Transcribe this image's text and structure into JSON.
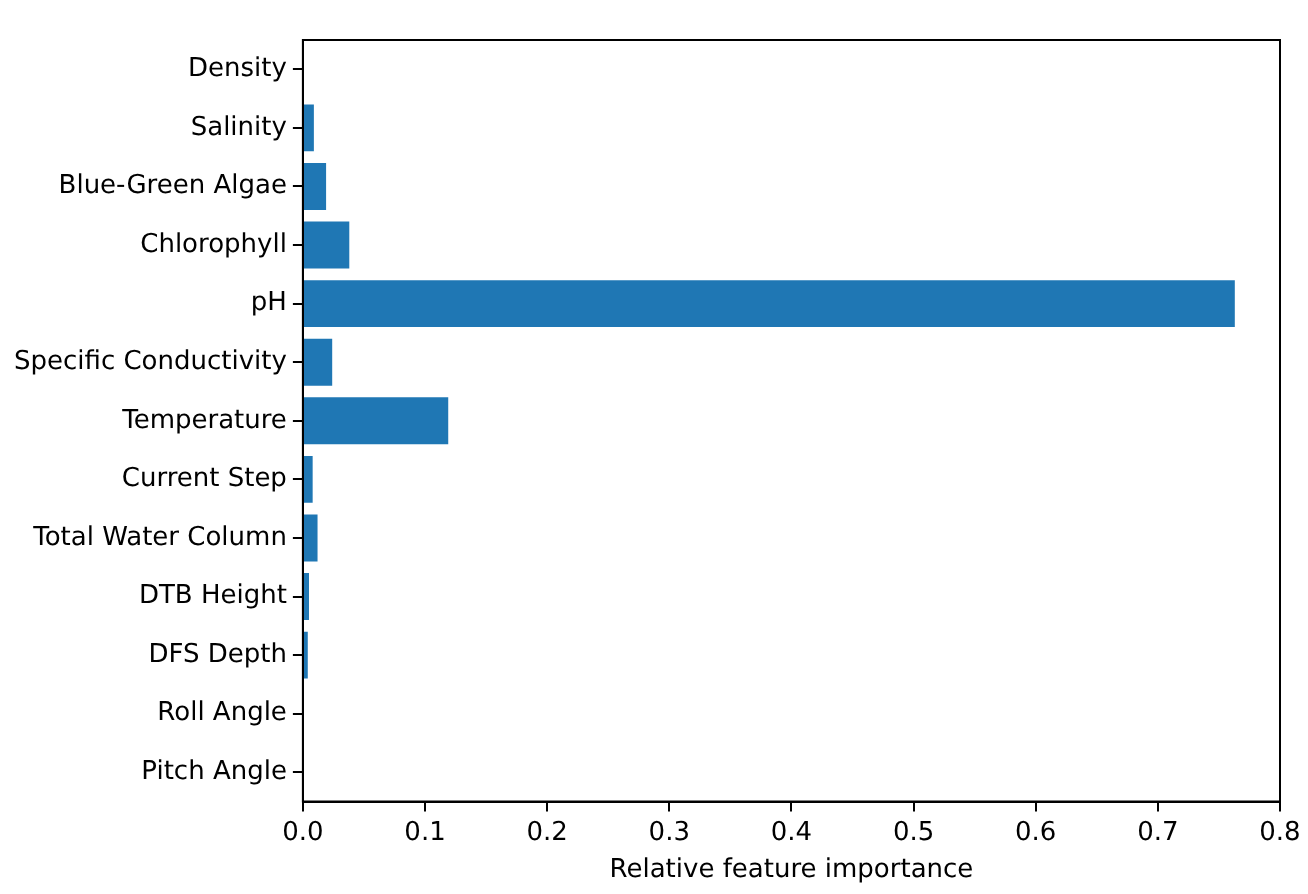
{
  "chart_data": {
    "type": "bar",
    "orientation": "horizontal",
    "xlabel": "Relative feature importance",
    "categories": [
      "Density",
      "Salinity",
      "Blue-Green Algae",
      "Chlorophyll",
      "pH",
      "Specific Conductivity",
      "Temperature",
      "Current Step",
      "Total Water Column",
      "DTB Height",
      "DFS Depth",
      "Roll Angle",
      "Pitch Angle"
    ],
    "values": [
      0,
      0.009,
      0.019,
      0.038,
      0.763,
      0.024,
      0.119,
      0.008,
      0.012,
      0.005,
      0.004,
      0,
      0
    ],
    "color": "#1f77b4",
    "xlim": [
      0,
      0.8
    ],
    "xticks": [
      {
        "value": 0,
        "label": "0.0"
      },
      0.1,
      0.2,
      0.3,
      0.4,
      0.5,
      0.6,
      0.7,
      0.8
    ],
    "grid": false,
    "legend": false
  }
}
